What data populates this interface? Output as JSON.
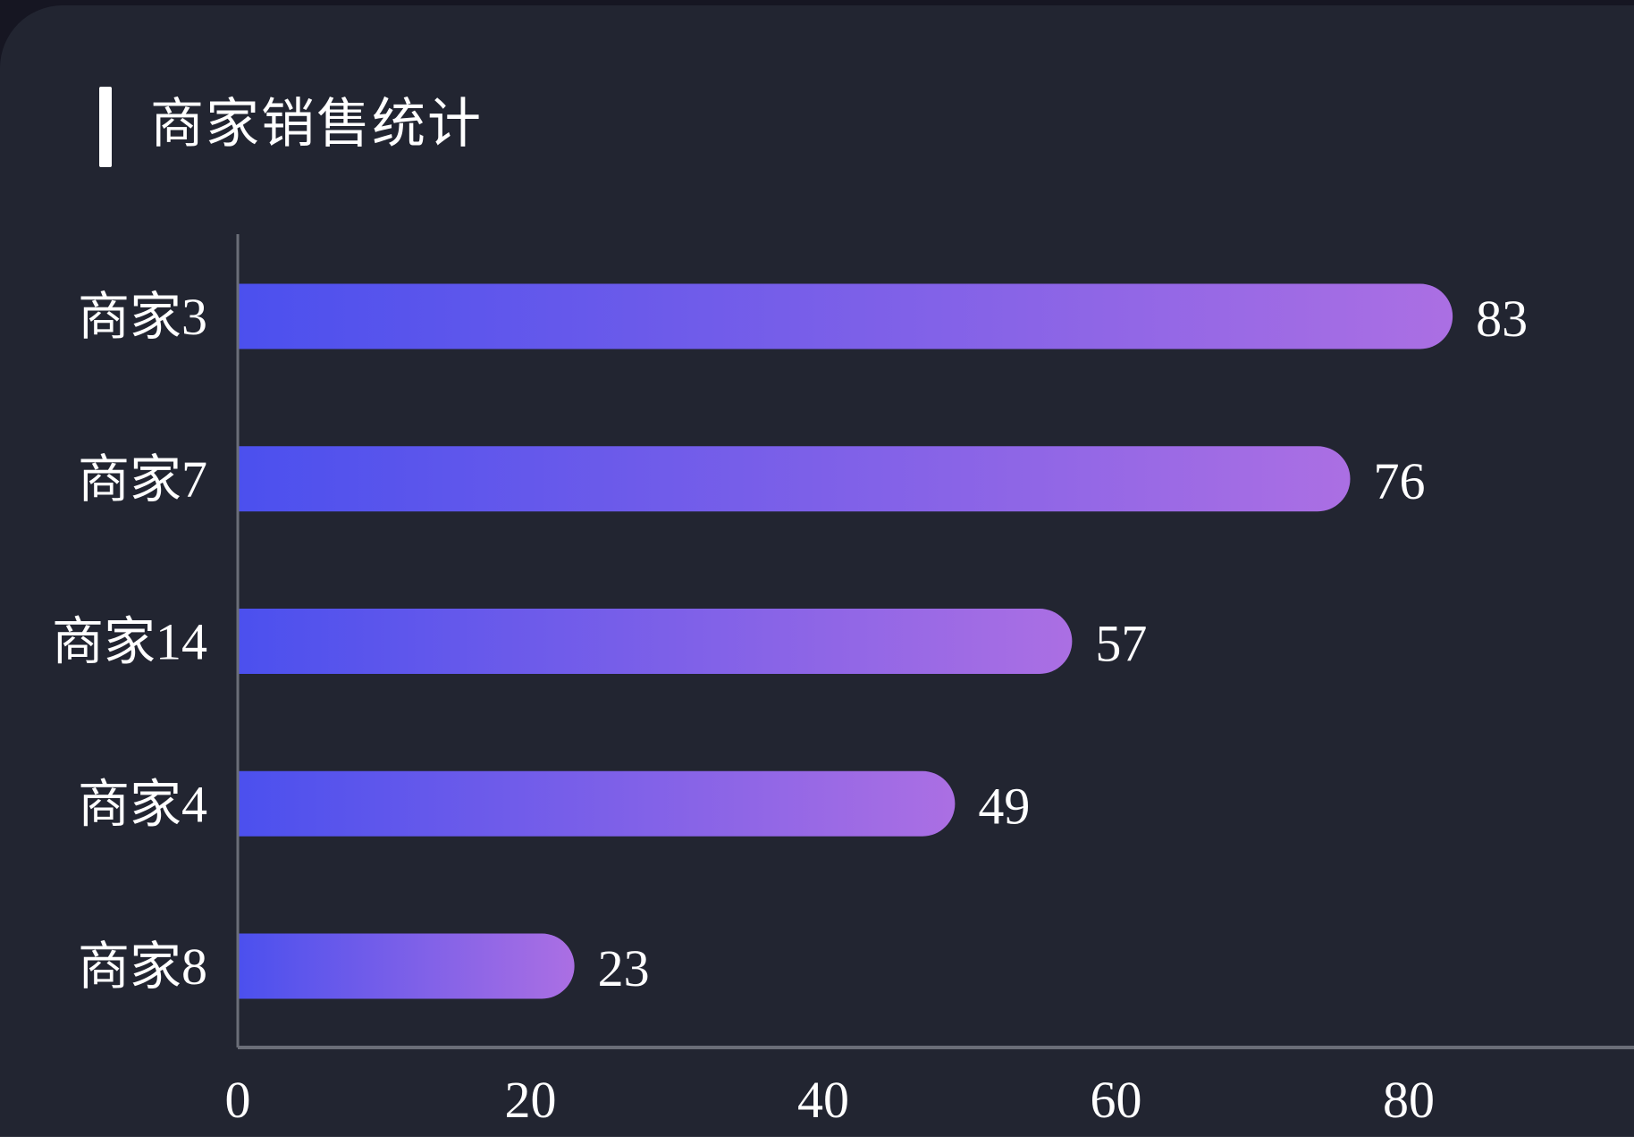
{
  "title": "商家销售统计",
  "colors": {
    "background": "#222531",
    "bar_start": "#4b50ee",
    "bar_end": "#ab6fe3",
    "axis": "#6b6e78",
    "text": "#ffffff"
  },
  "chart_data": {
    "type": "bar",
    "orientation": "horizontal",
    "title": "商家销售统计",
    "categories": [
      "商家3",
      "商家7",
      "商家14",
      "商家4",
      "商家8"
    ],
    "values": [
      83,
      76,
      57,
      49,
      23
    ],
    "xlim": [
      0,
      100
    ],
    "x_ticks": [
      "0",
      "20",
      "40",
      "60",
      "80"
    ],
    "grid": false,
    "data_labels": true
  }
}
